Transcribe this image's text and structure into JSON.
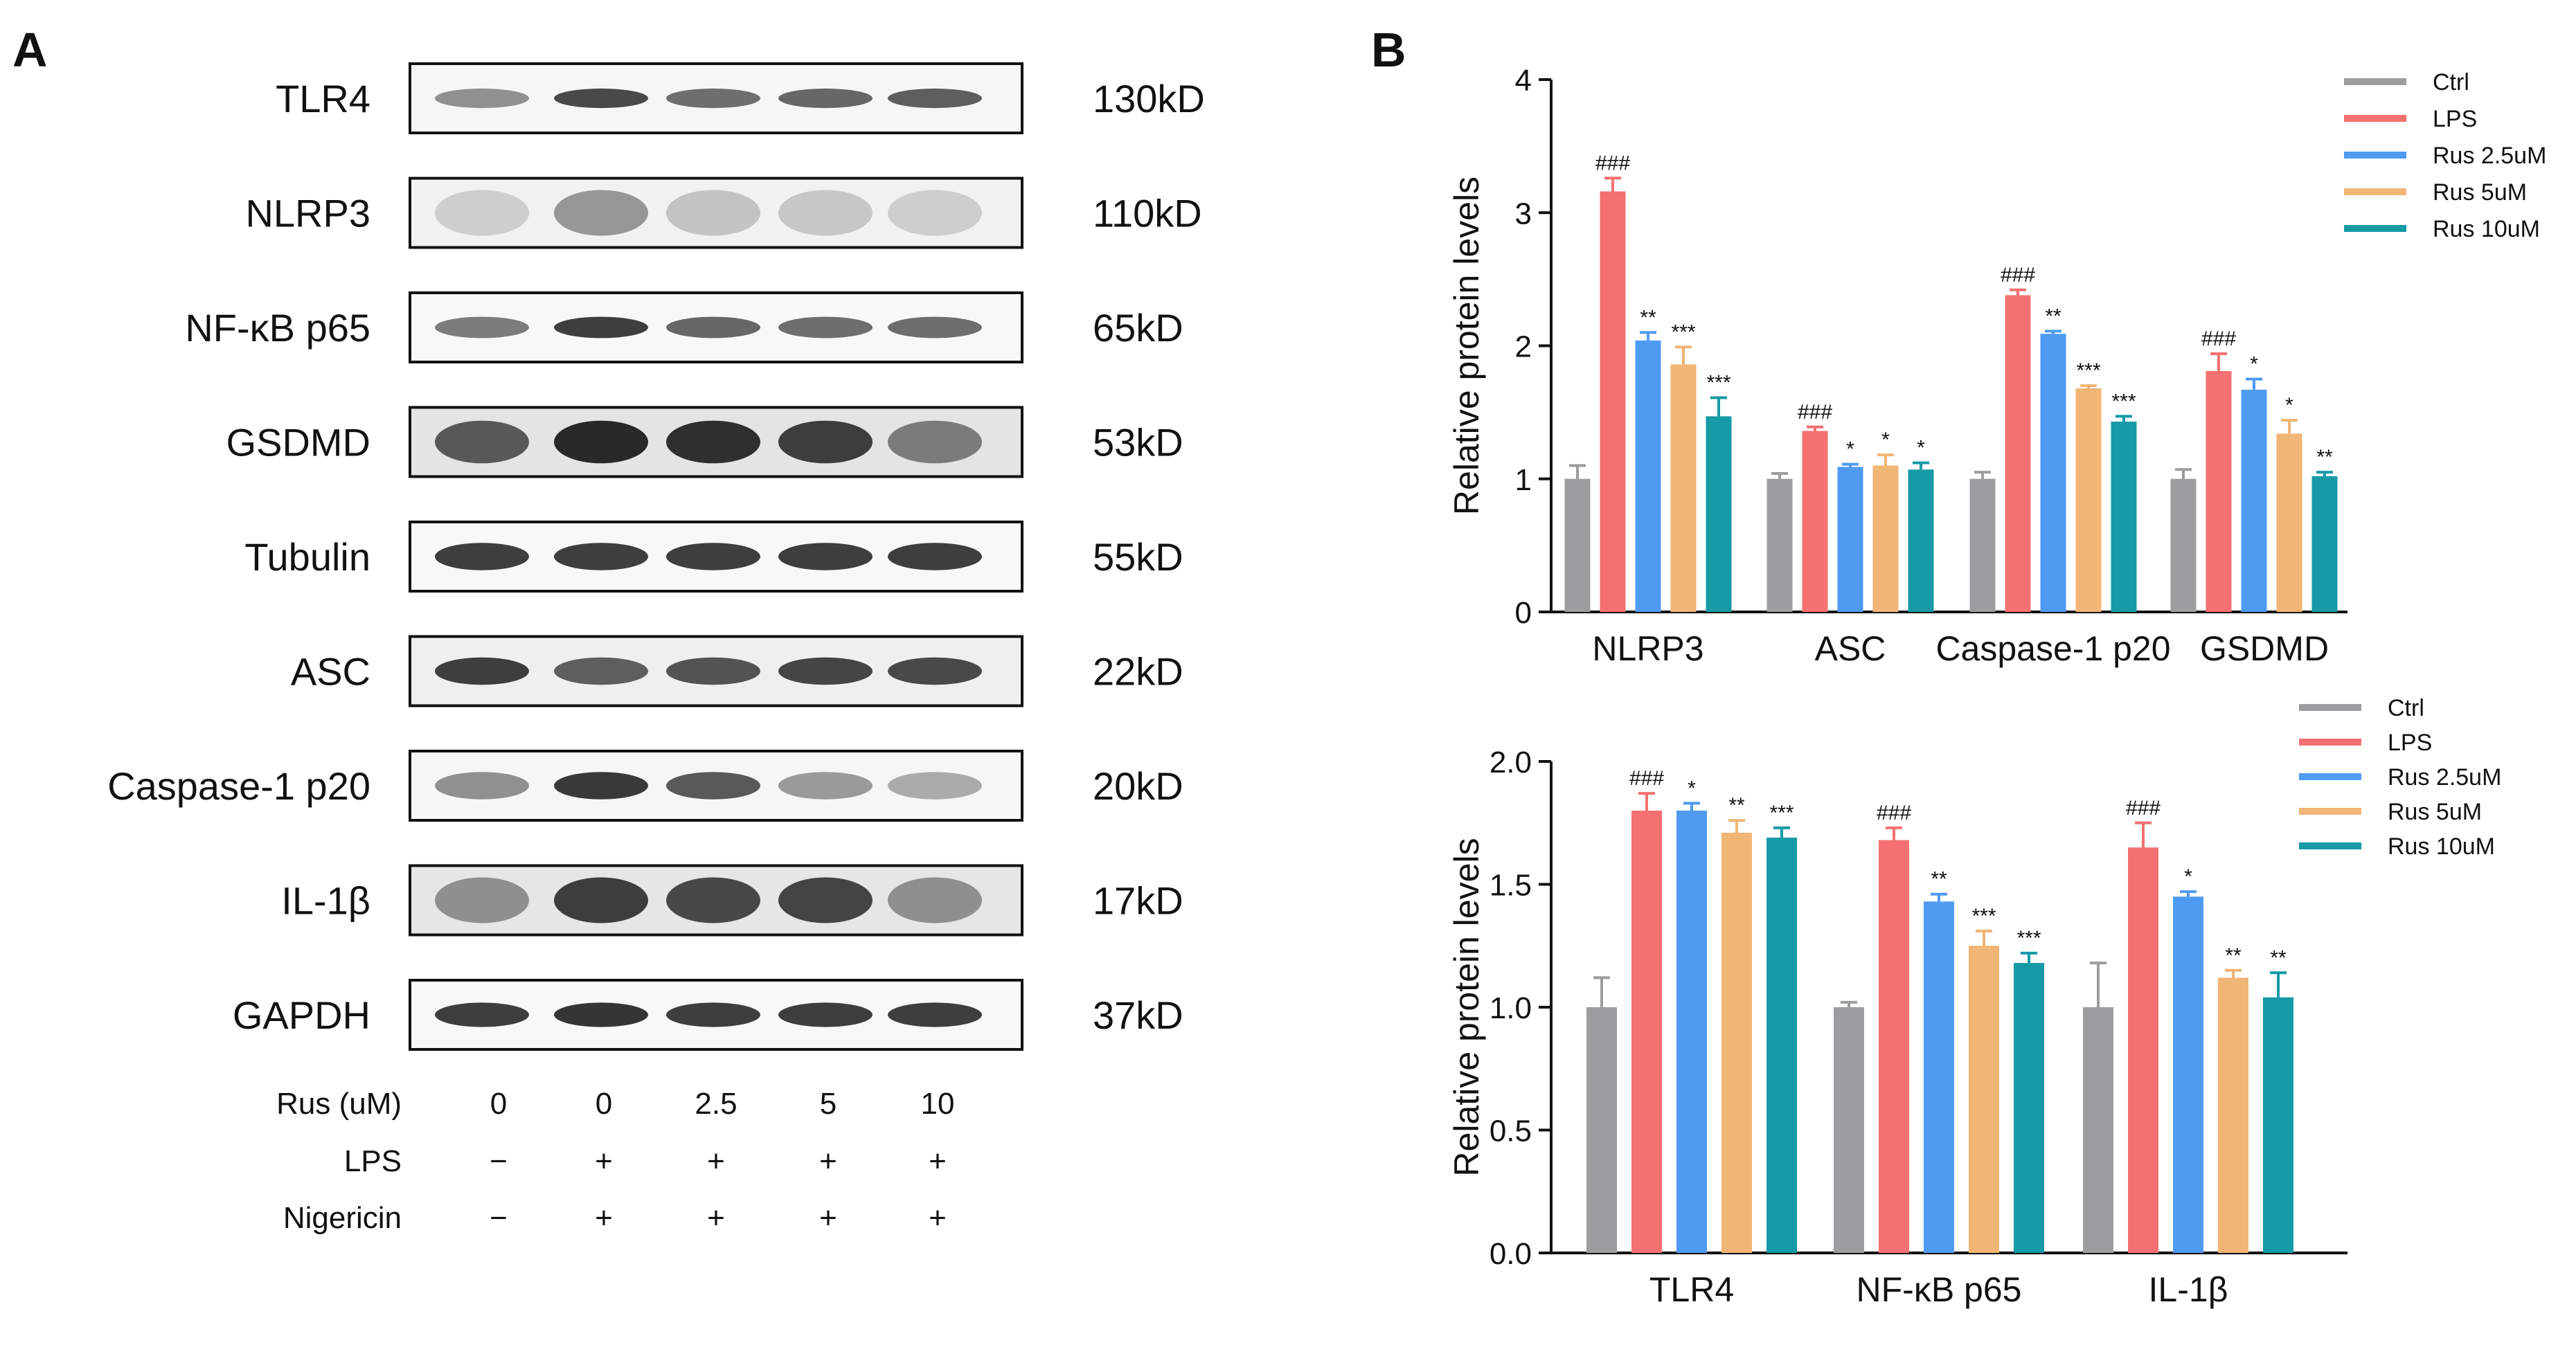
{
  "panel_a": {
    "letter": "A",
    "blots": [
      {
        "label": "TLR4",
        "size": "130kD",
        "bands": [
          0.45,
          0.8,
          0.62,
          0.65,
          0.7
        ],
        "thickness": 0.32,
        "bg": 0.1
      },
      {
        "label": "NLRP3",
        "size": "110kD",
        "bands": [
          0.15,
          0.42,
          0.2,
          0.18,
          0.15
        ],
        "thickness": 0.75,
        "bg": 0.16
      },
      {
        "label": "NF-κB p65",
        "size": "65kD",
        "bands": [
          0.55,
          0.85,
          0.65,
          0.62,
          0.62
        ],
        "thickness": 0.35,
        "bg": 0.08
      },
      {
        "label": "GSDMD",
        "size": "53kD",
        "bands": [
          0.72,
          0.95,
          0.92,
          0.85,
          0.55
        ],
        "thickness": 0.7,
        "bg": 0.3
      },
      {
        "label": "Tubulin",
        "size": "55kD",
        "bands": [
          0.85,
          0.85,
          0.85,
          0.85,
          0.85
        ],
        "thickness": 0.45,
        "bg": 0.08
      },
      {
        "label": "ASC",
        "size": "22kD",
        "bands": [
          0.85,
          0.7,
          0.75,
          0.82,
          0.8
        ],
        "thickness": 0.45,
        "bg": 0.18
      },
      {
        "label": "Caspase-1 p20",
        "size": "20kD",
        "bands": [
          0.45,
          0.88,
          0.72,
          0.4,
          0.32
        ],
        "thickness": 0.45,
        "bg": 0.1
      },
      {
        "label": "IL-1β",
        "size": "17kD",
        "bands": [
          0.45,
          0.85,
          0.8,
          0.82,
          0.45
        ],
        "thickness": 0.75,
        "bg": 0.28
      },
      {
        "label": "GAPDH",
        "size": "37kD",
        "bands": [
          0.85,
          0.9,
          0.85,
          0.85,
          0.85
        ],
        "thickness": 0.4,
        "bg": 0.08
      }
    ],
    "conditions": [
      {
        "label": "Rus (uM)",
        "values": [
          "0",
          "0",
          "2.5",
          "5",
          "10"
        ]
      },
      {
        "label": "LPS",
        "values": [
          "−",
          "+",
          "+",
          "+",
          "+"
        ]
      },
      {
        "label": "Nigericin",
        "values": [
          "−",
          "+",
          "+",
          "+",
          "+"
        ]
      }
    ]
  },
  "panel_b": {
    "letter": "B"
  },
  "chart_data": [
    {
      "type": "bar",
      "title": "",
      "xlabel": "",
      "ylabel": "Relative protein levels",
      "ylim": [
        0,
        4
      ],
      "yticks": [
        "0",
        "1",
        "2",
        "3",
        "4"
      ],
      "categories": [
        "NLRP3",
        "ASC",
        "Caspase-1 p20",
        "GSDMD"
      ],
      "legend_position": "top-right",
      "series": [
        {
          "name": "Ctrl",
          "color": "#9d9d9f",
          "values": [
            1.0,
            1.0,
            1.0,
            1.0
          ],
          "errors": [
            0.1,
            0.04,
            0.05,
            0.07
          ],
          "annotations": [
            "",
            "",
            "",
            ""
          ]
        },
        {
          "name": "LPS",
          "color": "#f57070",
          "values": [
            3.16,
            1.36,
            2.38,
            1.81
          ],
          "errors": [
            0.1,
            0.03,
            0.04,
            0.13
          ],
          "annotations": [
            "###",
            "###",
            "###",
            "###"
          ]
        },
        {
          "name": "Rus 2.5uM",
          "color": "#4f9bf2",
          "values": [
            2.04,
            1.09,
            2.09,
            1.67
          ],
          "errors": [
            0.06,
            0.02,
            0.02,
            0.08
          ],
          "annotations": [
            "**",
            "*",
            "**",
            "*"
          ]
        },
        {
          "name": "Rus 5uM",
          "color": "#f1b575",
          "values": [
            1.86,
            1.1,
            1.68,
            1.34
          ],
          "errors": [
            0.13,
            0.08,
            0.02,
            0.1
          ],
          "annotations": [
            "***",
            "*",
            "***",
            "*"
          ]
        },
        {
          "name": "Rus 10uM",
          "color": "#159aa6",
          "values": [
            1.47,
            1.07,
            1.43,
            1.02
          ],
          "errors": [
            0.14,
            0.05,
            0.04,
            0.03
          ],
          "annotations": [
            "***",
            "*",
            "***",
            "**"
          ]
        }
      ]
    },
    {
      "type": "bar",
      "title": "",
      "xlabel": "",
      "ylabel": "Relative protein levels",
      "ylim": [
        0,
        2
      ],
      "yticks": [
        "0.0",
        "0.5",
        "1.0",
        "1.5",
        "2.0"
      ],
      "categories": [
        "TLR4",
        "NF-κB p65",
        "IL-1β"
      ],
      "legend_position": "top-right",
      "series": [
        {
          "name": "Ctrl",
          "color": "#9d9d9f",
          "values": [
            1.0,
            1.0,
            1.0
          ],
          "errors": [
            0.12,
            0.02,
            0.18
          ],
          "annotations": [
            "",
            "",
            ""
          ]
        },
        {
          "name": "LPS",
          "color": "#f57070",
          "values": [
            1.8,
            1.68,
            1.65
          ],
          "errors": [
            0.07,
            0.05,
            0.1
          ],
          "annotations": [
            "###",
            "###",
            "###"
          ]
        },
        {
          "name": "Rus 2.5uM",
          "color": "#4f9bf2",
          "values": [
            1.8,
            1.43,
            1.45
          ],
          "errors": [
            0.03,
            0.03,
            0.02
          ],
          "annotations": [
            "*",
            "**",
            "*"
          ]
        },
        {
          "name": "Rus 5uM",
          "color": "#f1b575",
          "values": [
            1.71,
            1.25,
            1.12
          ],
          "errors": [
            0.05,
            0.06,
            0.03
          ],
          "annotations": [
            "**",
            "***",
            "**"
          ]
        },
        {
          "name": "Rus 10uM",
          "color": "#159aa6",
          "values": [
            1.69,
            1.18,
            1.04
          ],
          "errors": [
            0.04,
            0.04,
            0.1
          ],
          "annotations": [
            "***",
            "***",
            "**"
          ]
        }
      ]
    }
  ]
}
